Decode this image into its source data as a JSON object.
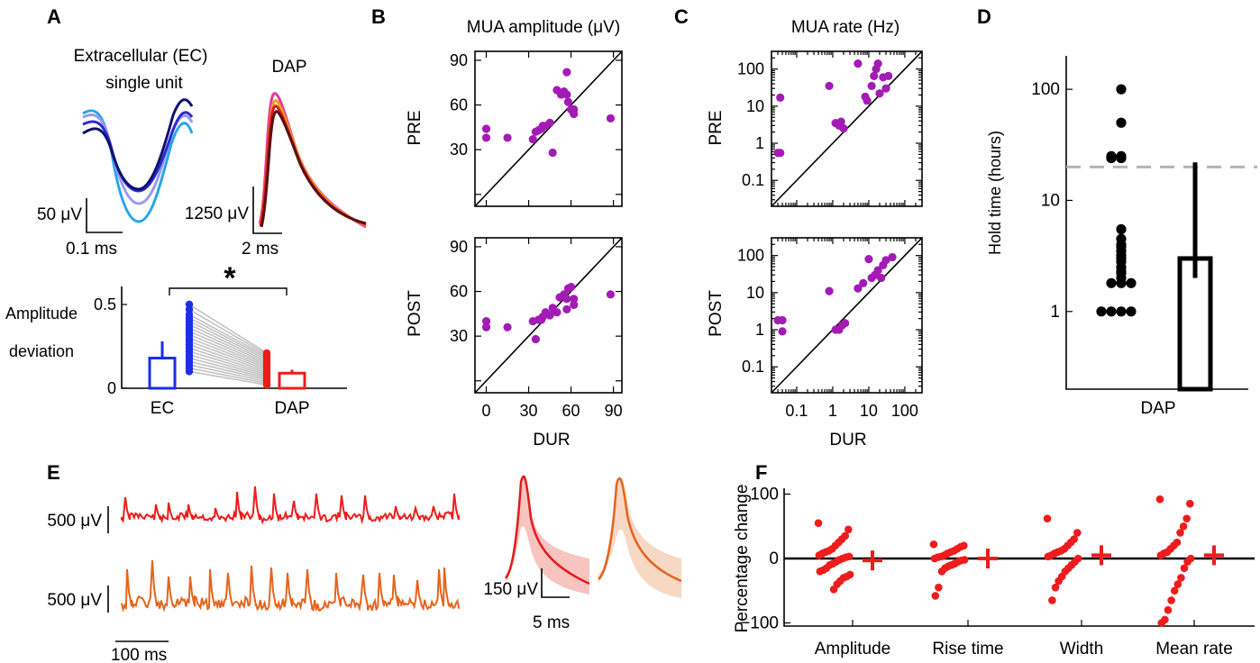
{
  "panels": {
    "a": "A",
    "b": "B",
    "c": "C",
    "d": "D",
    "e": "E",
    "f": "F"
  },
  "panel_a": {
    "ec_title_1": "Extracellular (EC)",
    "ec_title_2": "single unit",
    "dap_title": "DAP",
    "ec_scale_v": "50 μV",
    "ec_scale_t": "0.1 ms",
    "dap_scale_v": "1250 μV",
    "dap_scale_t": "2 ms",
    "ylabel_1": "Amplitude",
    "ylabel_2": "deviation",
    "significance": "*"
  },
  "panel_e": {
    "scale_v_1": "500 μV",
    "scale_v_2": "500 μV",
    "scale_t": "100 ms",
    "avg_scale_v": "150 μV",
    "avg_scale_t": "5 ms"
  },
  "colors": {
    "mua": "#a21bb4",
    "black": "#000000",
    "red": "#ee1c1c",
    "orange": "#e6641c",
    "ec_bar": "#1a2fe6",
    "gray_line": "#bfbfbf",
    "dash": "#b3b3b3"
  },
  "chart_data": [
    {
      "id": "A-bottom",
      "type": "bar",
      "ylabel": "Amplitude deviation",
      "categories": [
        "EC",
        "DAP"
      ],
      "values": [
        0.18,
        0.09
      ],
      "errors": [
        0.1,
        0.02
      ],
      "yticks": [
        0,
        0.5
      ],
      "ylim": [
        0,
        0.6
      ],
      "ec_points": [
        0.5,
        0.47,
        0.44,
        0.42,
        0.4,
        0.38,
        0.36,
        0.34,
        0.32,
        0.3,
        0.28,
        0.26,
        0.24,
        0.22,
        0.2,
        0.18,
        0.16,
        0.14,
        0.12,
        0.1
      ],
      "dap_points": [
        0.21,
        0.2,
        0.19,
        0.18,
        0.17,
        0.16,
        0.15,
        0.14,
        0.13,
        0.12,
        0.11,
        0.1,
        0.09,
        0.08,
        0.07,
        0.06,
        0.05,
        0.04,
        0.03,
        0.02
      ]
    },
    {
      "id": "B",
      "type": "scatter",
      "title": "MUA amplitude (μV)",
      "xlabel": "DUR",
      "ticks": [
        0,
        30,
        60,
        90
      ],
      "lim": [
        -8,
        96
      ],
      "rows": [
        {
          "ylabel": "PRE",
          "points": [
            [
              0,
              44
            ],
            [
              0,
              38
            ],
            [
              15,
              38
            ],
            [
              33,
              37
            ],
            [
              35,
              42
            ],
            [
              37,
              43
            ],
            [
              39,
              44
            ],
            [
              40,
              46
            ],
            [
              42,
              46
            ],
            [
              45,
              48
            ],
            [
              47,
              28
            ],
            [
              50,
              70
            ],
            [
              53,
              67
            ],
            [
              55,
              69
            ],
            [
              57,
              67
            ],
            [
              57,
              82
            ],
            [
              58,
              62
            ],
            [
              60,
              57
            ],
            [
              62,
              57
            ],
            [
              62,
              54
            ],
            [
              88,
              51
            ]
          ]
        },
        {
          "ylabel": "POST",
          "points": [
            [
              0,
              40
            ],
            [
              0,
              36
            ],
            [
              15,
              36
            ],
            [
              33,
              40
            ],
            [
              35,
              28
            ],
            [
              37,
              41
            ],
            [
              39,
              41
            ],
            [
              40,
              43
            ],
            [
              42,
              46
            ],
            [
              45,
              44
            ],
            [
              47,
              49
            ],
            [
              50,
              46
            ],
            [
              52,
              56
            ],
            [
              55,
              58
            ],
            [
              57,
              48
            ],
            [
              57,
              55
            ],
            [
              58,
              62
            ],
            [
              60,
              63
            ],
            [
              62,
              51
            ],
            [
              62,
              55
            ],
            [
              88,
              58
            ]
          ]
        }
      ]
    },
    {
      "id": "C",
      "type": "scatter",
      "scale": "log",
      "title": "MUA rate (Hz)",
      "xlabel": "DUR",
      "ticks": [
        0.1,
        1,
        10,
        100
      ],
      "tick_labels": [
        "0.1",
        "1",
        "10",
        "100"
      ],
      "lim": [
        0.02,
        300
      ],
      "rows": [
        {
          "ylabel": "PRE",
          "points": [
            [
              0.03,
              0.55
            ],
            [
              0.035,
              0.55
            ],
            [
              0.035,
              17
            ],
            [
              0.8,
              35
            ],
            [
              1.2,
              3.5
            ],
            [
              1.5,
              3
            ],
            [
              1.7,
              3.8
            ],
            [
              2.0,
              2.5
            ],
            [
              5,
              140
            ],
            [
              8,
              18
            ],
            [
              9,
              14
            ],
            [
              12,
              35
            ],
            [
              14,
              65
            ],
            [
              16,
              100
            ],
            [
              18,
              140
            ],
            [
              20,
              22
            ],
            [
              25,
              60
            ],
            [
              30,
              30
            ],
            [
              35,
              65
            ]
          ]
        },
        {
          "ylabel": "POST",
          "points": [
            [
              0.03,
              1.8
            ],
            [
              0.04,
              1.8
            ],
            [
              0.04,
              0.9
            ],
            [
              0.8,
              11
            ],
            [
              1.2,
              1
            ],
            [
              1.5,
              1
            ],
            [
              1.8,
              1.3
            ],
            [
              2.2,
              1.5
            ],
            [
              5,
              13
            ],
            [
              7,
              18
            ],
            [
              10,
              80
            ],
            [
              12,
              25
            ],
            [
              15,
              30
            ],
            [
              18,
              40
            ],
            [
              22,
              25
            ],
            [
              25,
              55
            ],
            [
              30,
              75
            ],
            [
              45,
              90
            ]
          ]
        }
      ]
    },
    {
      "id": "D",
      "type": "scatter",
      "scale": "log",
      "ylabel": "Hold time (hours)",
      "xlabel": "DAP",
      "yticks": [
        1,
        10,
        100
      ],
      "ylim": [
        0.2,
        200
      ],
      "threshold": 20,
      "points": [
        100,
        50,
        25,
        25,
        24,
        24,
        5.5,
        4.5,
        4.0,
        3.8,
        3.5,
        3.2,
        3.0,
        2.8,
        2.5,
        2.3,
        2.2,
        2.0,
        1.8,
        1.8,
        1.8,
        1.0,
        1.0,
        1.0,
        1.0
      ],
      "median": 3.0,
      "err_low": 2.0,
      "err_high": 22
    },
    {
      "id": "F",
      "type": "scatter",
      "ylabel": "Percentage change",
      "categories": [
        "Amplitude",
        "Rise time",
        "Width",
        "Mean rate"
      ],
      "yticks": [
        -100,
        0,
        100
      ],
      "ylim": [
        -110,
        110
      ],
      "series": [
        {
          "values": [
            55,
            45,
            35,
            30,
            25,
            20,
            15,
            12,
            10,
            8,
            5,
            3,
            2,
            0,
            -2,
            -5,
            -8,
            -10,
            -15,
            -18,
            -20,
            -25,
            -28,
            -30,
            -35,
            -40,
            -48
          ],
          "mean": -3
        },
        {
          "values": [
            22,
            20,
            18,
            15,
            12,
            10,
            8,
            5,
            3,
            2,
            0,
            -2,
            -3,
            -5,
            -8,
            -10,
            -12,
            -15,
            -20,
            -45,
            -58
          ],
          "mean": 0
        },
        {
          "values": [
            62,
            40,
            30,
            25,
            20,
            15,
            12,
            10,
            8,
            5,
            3,
            0,
            -5,
            -10,
            -15,
            -20,
            -28,
            -35,
            -45,
            -65
          ],
          "mean": 5
        },
        {
          "values": [
            92,
            85,
            62,
            50,
            40,
            25,
            20,
            15,
            10,
            8,
            5,
            0,
            -5,
            -15,
            -30,
            -40,
            -50,
            -65,
            -80,
            -95,
            -100
          ],
          "mean": 5
        }
      ]
    }
  ]
}
